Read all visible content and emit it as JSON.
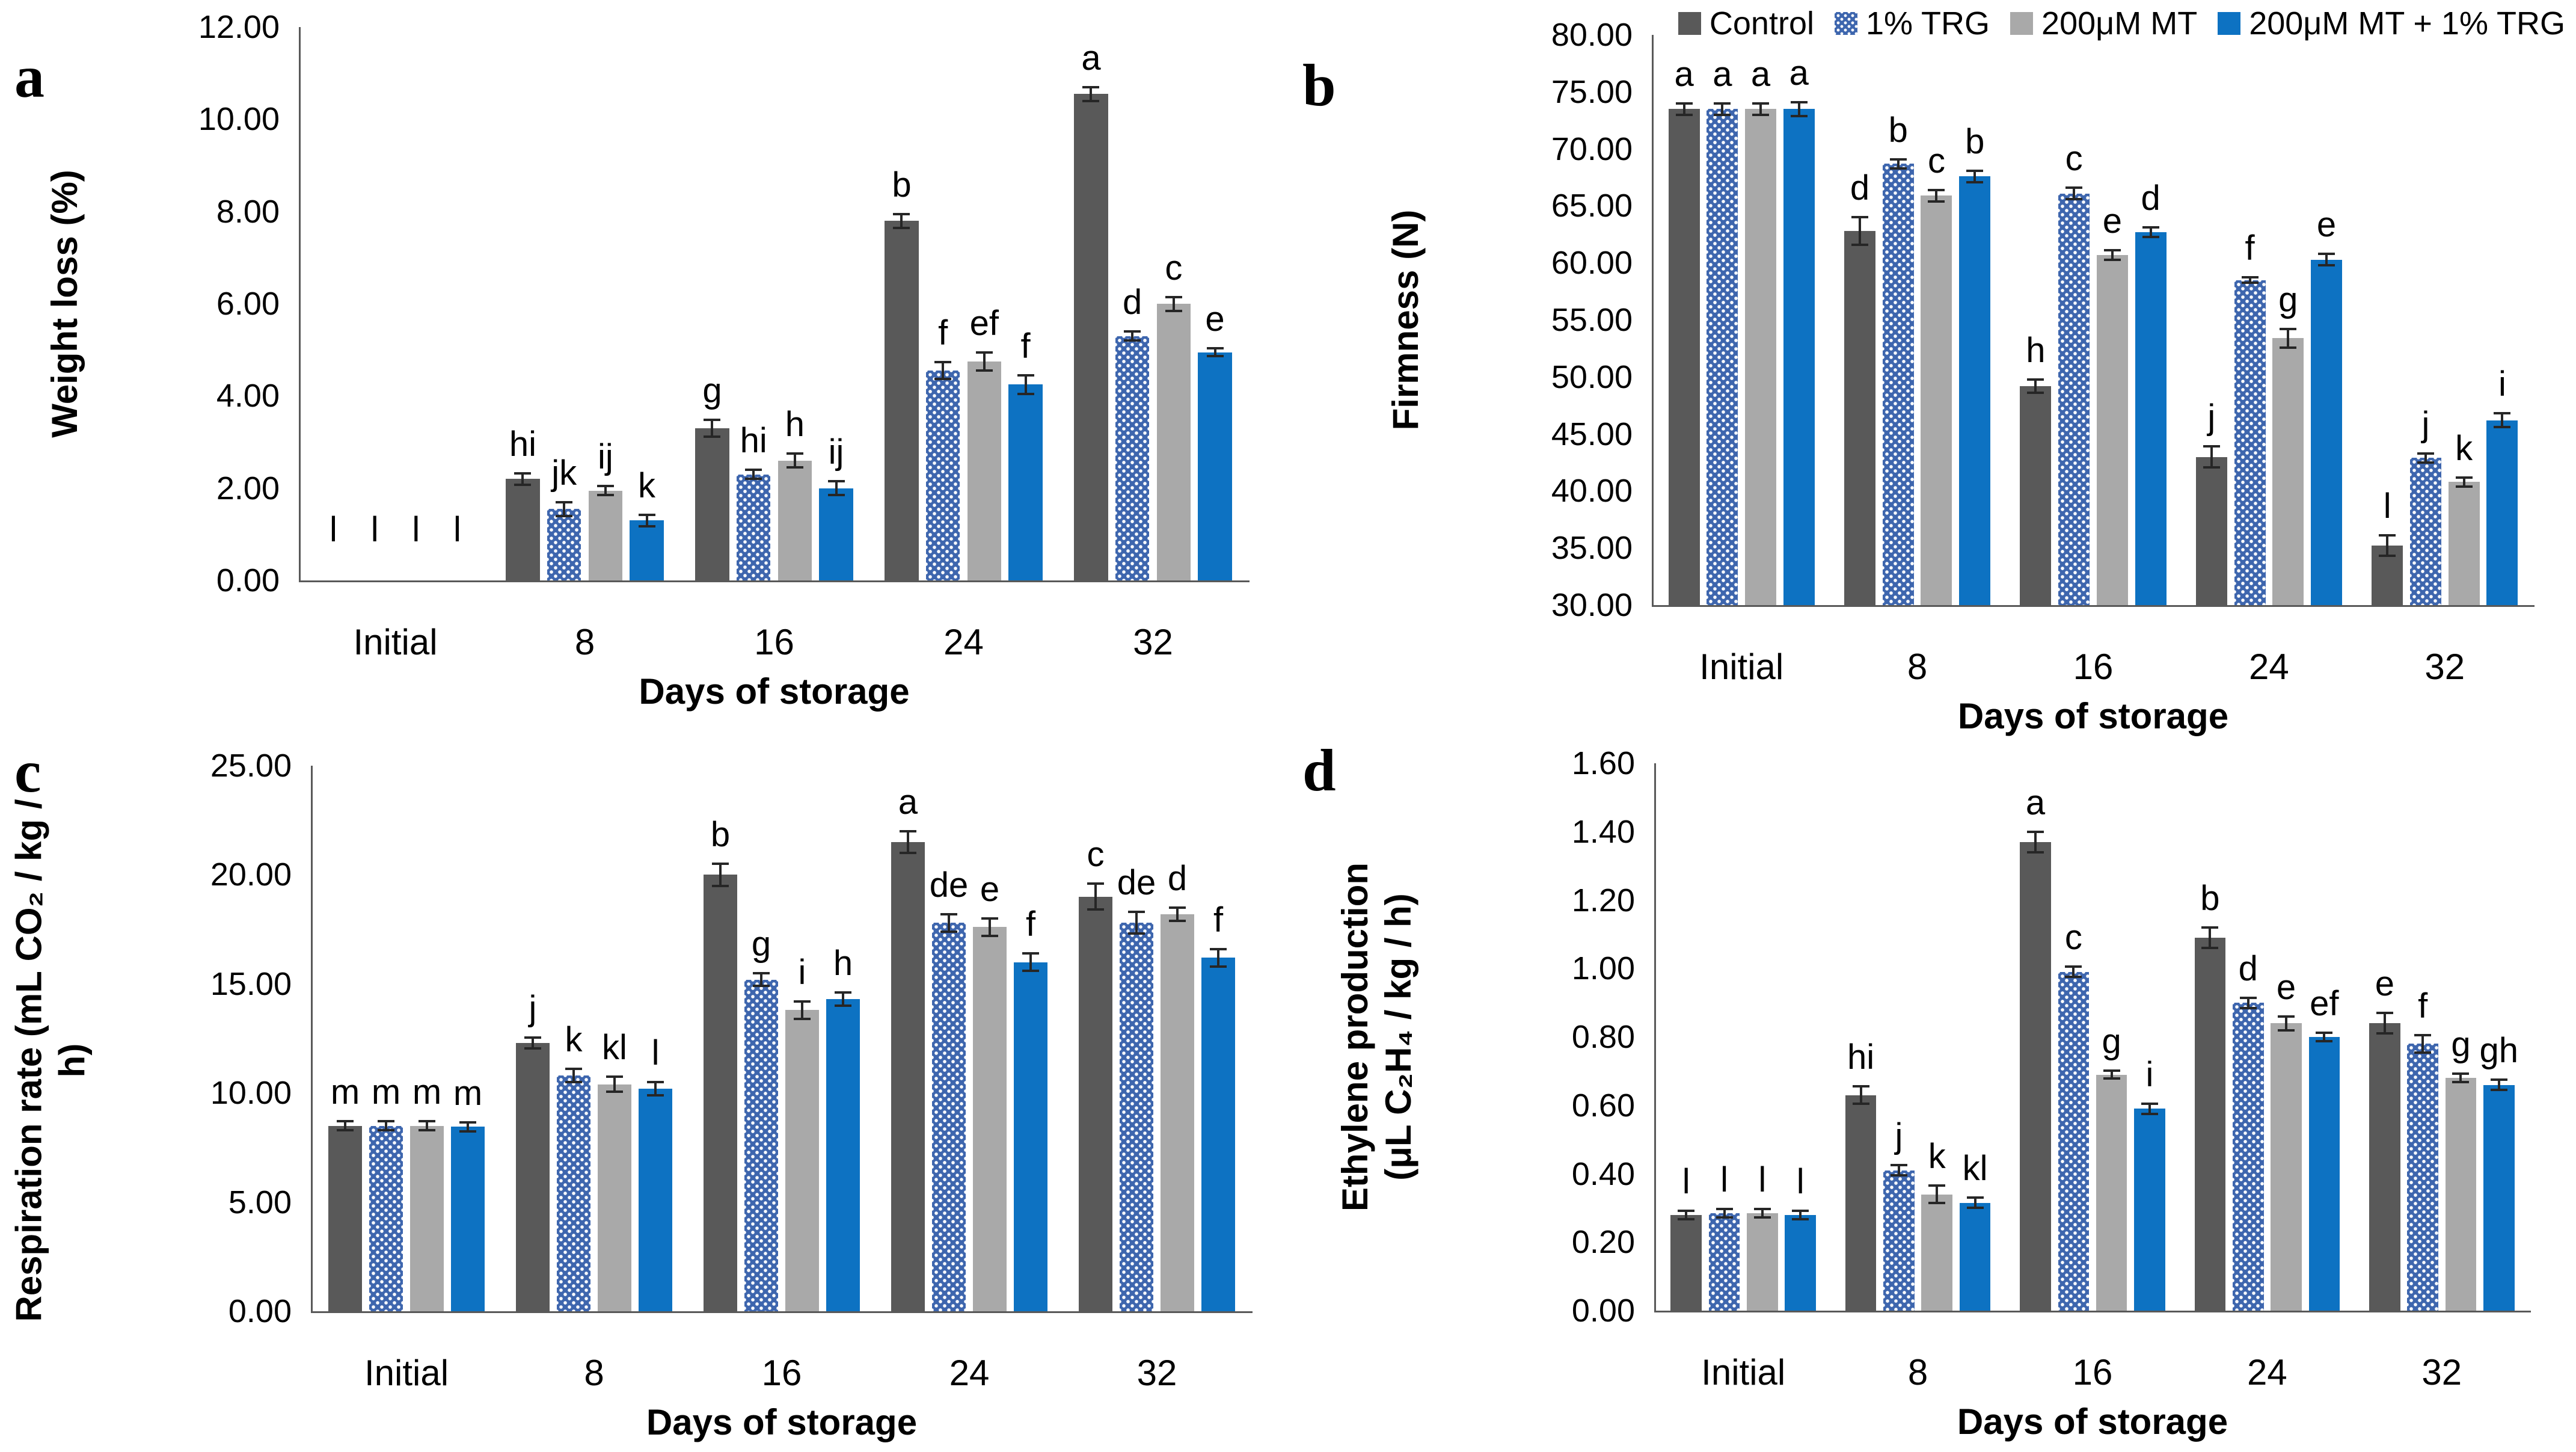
{
  "colors": {
    "control": "#595959",
    "trg_base": "#3e66ae",
    "trg_dots": "#ffffff",
    "mt": "#a9a9a9",
    "mt_trg": "#0d72c2",
    "error_bar": "#262626",
    "axis": "#595959",
    "text": "#000000",
    "background": "#ffffff"
  },
  "legend": {
    "items": [
      {
        "key": "control",
        "label": "Control"
      },
      {
        "key": "trg",
        "label": "1% TRG"
      },
      {
        "key": "mt",
        "label": "200μM MT"
      },
      {
        "key": "mt_trg",
        "label": "200μM MT + 1% TRG"
      }
    ]
  },
  "chart_data": [
    {
      "panel": "a",
      "type": "bar",
      "title": "",
      "ylabel": "Weight loss (%)",
      "xlabel": "Days of storage",
      "ylim": [
        0,
        12
      ],
      "ytick_labels": [
        "12.00",
        "10.00",
        "8.00",
        "6.00",
        "4.00",
        "2.00",
        "0.00"
      ],
      "categories": [
        "Initial",
        "8",
        "16",
        "24",
        "32"
      ],
      "grid": false,
      "legend_position": "none",
      "series": [
        {
          "name": "Control",
          "key": "control",
          "values": [
            0,
            2.2,
            3.3,
            7.8,
            10.55
          ],
          "errors": [
            0,
            0.12,
            0.18,
            0.15,
            0.15
          ],
          "letters": [
            "l",
            "hi",
            "g",
            "b",
            "a"
          ]
        },
        {
          "name": "1% TRG",
          "key": "trg",
          "values": [
            0,
            1.55,
            2.3,
            4.55,
            5.3
          ],
          "errors": [
            0,
            0.15,
            0.1,
            0.18,
            0.1
          ],
          "letters": [
            "l",
            "jk",
            "hi",
            "f",
            "d"
          ]
        },
        {
          "name": "200μM MT",
          "key": "mt",
          "values": [
            0,
            1.95,
            2.6,
            4.75,
            6.0
          ],
          "errors": [
            0,
            0.1,
            0.15,
            0.2,
            0.15
          ],
          "letters": [
            "l",
            "ij",
            "h",
            "ef",
            "c"
          ]
        },
        {
          "name": "200μM MT + 1% TRG",
          "key": "mt_trg",
          "values": [
            0,
            1.3,
            2.0,
            4.25,
            4.95
          ],
          "errors": [
            0,
            0.12,
            0.15,
            0.2,
            0.08
          ],
          "letters": [
            "l",
            "k",
            "ij",
            "f",
            "e"
          ]
        }
      ]
    },
    {
      "panel": "b",
      "type": "bar",
      "title": "",
      "ylabel": "Firmness (N)",
      "xlabel": "Days of storage",
      "ylim": [
        30,
        80
      ],
      "ytick_labels": [
        "80.00",
        "75.00",
        "70.00",
        "65.00",
        "60.00",
        "55.00",
        "50.00",
        "45.00",
        "40.00",
        "35.00",
        "30.00"
      ],
      "categories": [
        "Initial",
        "8",
        "16",
        "24",
        "32"
      ],
      "grid": false,
      "legend_position": "top-right",
      "series": [
        {
          "name": "Control",
          "key": "control",
          "values": [
            73.5,
            62.8,
            49.2,
            43.0,
            35.2
          ],
          "errors": [
            0.5,
            1.2,
            0.6,
            0.9,
            0.9
          ],
          "letters": [
            "a",
            "d",
            "h",
            "j",
            "l"
          ]
        },
        {
          "name": "1% TRG",
          "key": "trg",
          "values": [
            73.5,
            68.7,
            66.1,
            58.5,
            42.9
          ],
          "errors": [
            0.5,
            0.4,
            0.5,
            0.25,
            0.4
          ],
          "letters": [
            "a",
            "b",
            "c",
            "f",
            "j"
          ]
        },
        {
          "name": "200μM MT",
          "key": "mt",
          "values": [
            73.5,
            65.9,
            60.7,
            53.4,
            40.8
          ],
          "errors": [
            0.5,
            0.5,
            0.4,
            0.8,
            0.4
          ],
          "letters": [
            "a",
            "c",
            "e",
            "g",
            "k"
          ]
        },
        {
          "name": "200μM MT + 1% TRG",
          "key": "mt_trg",
          "values": [
            73.5,
            67.6,
            62.7,
            60.3,
            46.2
          ],
          "errors": [
            0.6,
            0.5,
            0.4,
            0.5,
            0.6
          ],
          "letters": [
            "a",
            "b",
            "d",
            "e",
            "i"
          ]
        }
      ]
    },
    {
      "panel": "c",
      "type": "bar",
      "title": "",
      "ylabel": "Respiration rate (mL CO₂ / kg / h)",
      "xlabel": "Days of storage",
      "ylim": [
        0,
        25
      ],
      "ytick_labels": [
        "25.00",
        "20.00",
        "15.00",
        "10.00",
        "5.00",
        "0.00"
      ],
      "categories": [
        "Initial",
        "8",
        "16",
        "24",
        "32"
      ],
      "grid": false,
      "legend_position": "none",
      "series": [
        {
          "name": "Control",
          "key": "control",
          "values": [
            8.5,
            12.3,
            20.0,
            21.5,
            19.0
          ],
          "errors": [
            0.2,
            0.25,
            0.5,
            0.5,
            0.6
          ],
          "letters": [
            "m",
            "j",
            "b",
            "a",
            "c"
          ]
        },
        {
          "name": "1% TRG",
          "key": "trg",
          "values": [
            8.5,
            10.8,
            15.2,
            17.8,
            17.8
          ],
          "errors": [
            0.2,
            0.3,
            0.3,
            0.4,
            0.5
          ],
          "letters": [
            "m",
            "k",
            "g",
            "de",
            "de"
          ]
        },
        {
          "name": "200μM MT",
          "key": "mt",
          "values": [
            8.5,
            10.4,
            13.8,
            17.6,
            18.2
          ],
          "errors": [
            0.2,
            0.35,
            0.4,
            0.4,
            0.3
          ],
          "letters": [
            "m",
            "kl",
            "i",
            "e",
            "d"
          ]
        },
        {
          "name": "200μM MT + 1% TRG",
          "key": "mt_trg",
          "values": [
            8.45,
            10.2,
            14.3,
            16.0,
            16.2
          ],
          "errors": [
            0.2,
            0.3,
            0.3,
            0.4,
            0.4
          ],
          "letters": [
            "m",
            "l",
            "h",
            "f",
            "f"
          ]
        }
      ]
    },
    {
      "panel": "d",
      "type": "bar",
      "title": "",
      "ylabel": "Ethylene production\n(μL C₂H₄ / kg / h)",
      "xlabel": "Days of storage",
      "ylim": [
        0,
        1.6
      ],
      "ytick_labels": [
        "1.60",
        "1.40",
        "1.20",
        "1.00",
        "0.80",
        "0.60",
        "0.40",
        "0.20",
        "0.00"
      ],
      "categories": [
        "Initial",
        "8",
        "16",
        "24",
        "32"
      ],
      "grid": false,
      "legend_position": "none",
      "series": [
        {
          "name": "Control",
          "key": "control",
          "values": [
            0.28,
            0.63,
            1.37,
            1.09,
            0.84
          ],
          "errors": [
            0.012,
            0.025,
            0.03,
            0.03,
            0.03
          ],
          "letters": [
            "l",
            "hi",
            "a",
            "b",
            "e"
          ]
        },
        {
          "name": "1% TRG",
          "key": "trg",
          "values": [
            0.285,
            0.41,
            0.99,
            0.9,
            0.78
          ],
          "errors": [
            0.012,
            0.015,
            0.015,
            0.015,
            0.025
          ],
          "letters": [
            "l",
            "j",
            "c",
            "d",
            "f"
          ]
        },
        {
          "name": "200μM MT",
          "key": "mt",
          "values": [
            0.285,
            0.34,
            0.69,
            0.84,
            0.68
          ],
          "errors": [
            0.012,
            0.025,
            0.012,
            0.02,
            0.012
          ],
          "letters": [
            "l",
            "k",
            "g",
            "e",
            "g"
          ]
        },
        {
          "name": "200μM MT + 1% TRG",
          "key": "mt_trg",
          "values": [
            0.28,
            0.315,
            0.59,
            0.8,
            0.66
          ],
          "errors": [
            0.012,
            0.015,
            0.015,
            0.012,
            0.015
          ],
          "letters": [
            "l",
            "kl",
            "i",
            "ef",
            "gh"
          ]
        }
      ]
    }
  ]
}
